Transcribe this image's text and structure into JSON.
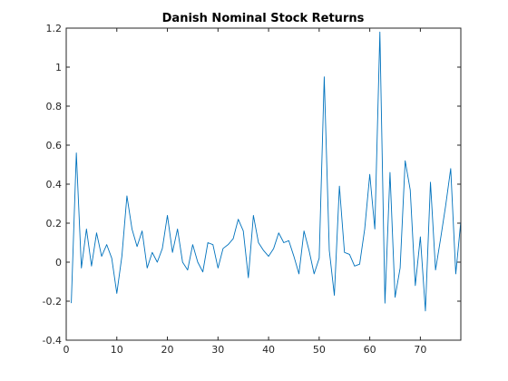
{
  "chart_data": {
    "type": "line",
    "title": "Danish Nominal Stock Returns",
    "xlabel": "",
    "ylabel": "",
    "xlim": [
      0,
      78
    ],
    "ylim": [
      -0.4,
      1.2
    ],
    "x_ticks": [
      0,
      10,
      20,
      30,
      40,
      50,
      60,
      70
    ],
    "y_ticks": [
      -0.4,
      -0.2,
      0,
      0.2,
      0.4,
      0.6,
      0.8,
      1,
      1.2
    ],
    "y_tick_labels": [
      "-0.4",
      "-0.2",
      "0",
      "0.2",
      "0.4",
      "0.6",
      "0.8",
      "1",
      "1.2"
    ],
    "x_tick_labels": [
      "0",
      "10",
      "20",
      "30",
      "40",
      "50",
      "60",
      "70"
    ],
    "grid": false,
    "series": [
      {
        "color": "#0072BD",
        "x": [
          1,
          2,
          3,
          4,
          5,
          6,
          7,
          8,
          9,
          10,
          11,
          12,
          13,
          14,
          15,
          16,
          17,
          18,
          19,
          20,
          21,
          22,
          23,
          24,
          25,
          26,
          27,
          28,
          29,
          30,
          31,
          32,
          33,
          34,
          35,
          36,
          37,
          38,
          39,
          40,
          41,
          42,
          43,
          44,
          45,
          46,
          47,
          48,
          49,
          50,
          51,
          52,
          53,
          54,
          55,
          56,
          57,
          58,
          59,
          60,
          61,
          62,
          63,
          64,
          65,
          66,
          67,
          68,
          69,
          70,
          71,
          72,
          73,
          74,
          75,
          76,
          77,
          78
        ],
        "values": [
          -0.21,
          0.56,
          -0.03,
          0.17,
          -0.02,
          0.15,
          0.03,
          0.09,
          0.02,
          -0.16,
          0.03,
          0.34,
          0.17,
          0.08,
          0.16,
          -0.03,
          0.05,
          0.0,
          0.07,
          0.24,
          0.05,
          0.17,
          0.0,
          -0.04,
          0.09,
          0.0,
          -0.05,
          0.1,
          0.09,
          -0.03,
          0.07,
          0.09,
          0.12,
          0.22,
          0.16,
          -0.08,
          0.24,
          0.1,
          0.06,
          0.03,
          0.07,
          0.15,
          0.1,
          0.11,
          0.03,
          -0.06,
          0.16,
          0.06,
          -0.06,
          0.02,
          0.95,
          0.06,
          -0.17,
          0.39,
          0.05,
          0.04,
          -0.02,
          -0.01,
          0.17,
          0.45,
          0.17,
          1.18,
          -0.21,
          0.46,
          -0.18,
          -0.03,
          0.52,
          0.37,
          -0.12,
          0.13,
          -0.25,
          0.41,
          -0.04,
          0.12,
          0.29,
          0.48,
          -0.06,
          0.21
        ]
      }
    ]
  }
}
